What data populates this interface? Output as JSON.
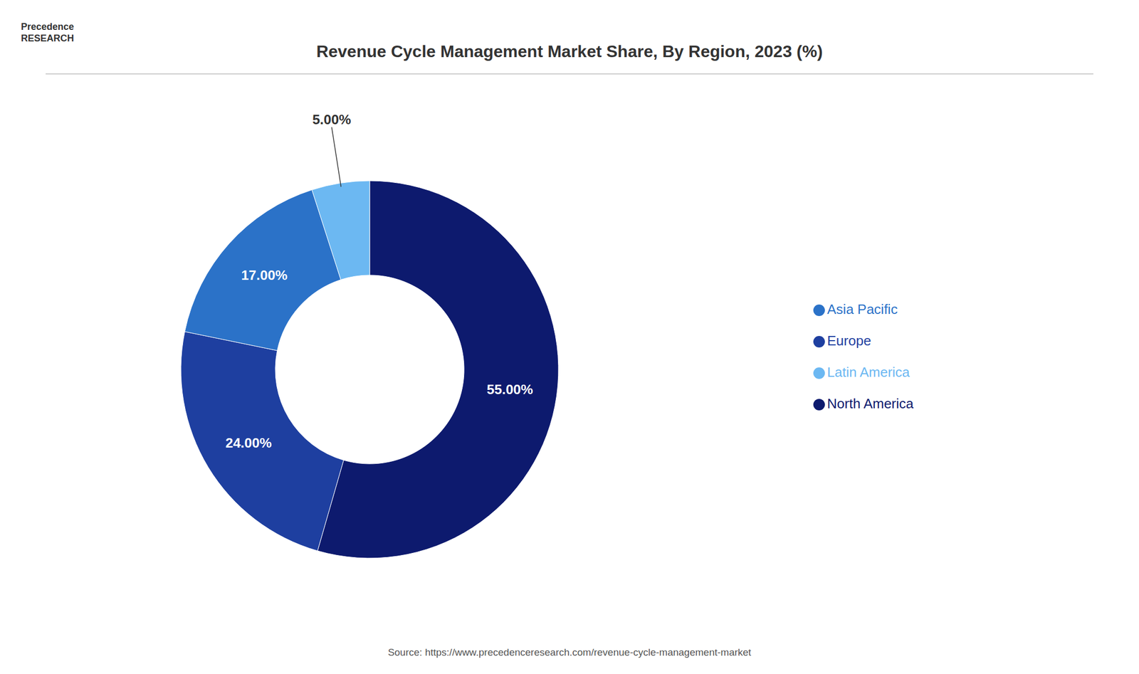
{
  "chart_data": {
    "type": "pie",
    "title": "Revenue Cycle Management Market  Share, By Region, 2023 (%)",
    "categories": [
      "North America",
      "Europe",
      "Asia Pacific",
      "Latin America"
    ],
    "values": [
      55.0,
      24.0,
      17.0,
      5.0
    ],
    "value_labels": [
      "55.00%",
      "24.00%",
      "17.00%",
      "5.00%"
    ],
    "colors": [
      "#0d1a6e",
      "#1e3fa0",
      "#2b72c8",
      "#6cb8f2"
    ],
    "data_labels": true,
    "legend": "right",
    "annotations": [
      "Precedence\nRESEARCH",
      "Source: https://www.precedenceresearch.com/revenue-cycle-management-market"
    ]
  }
}
